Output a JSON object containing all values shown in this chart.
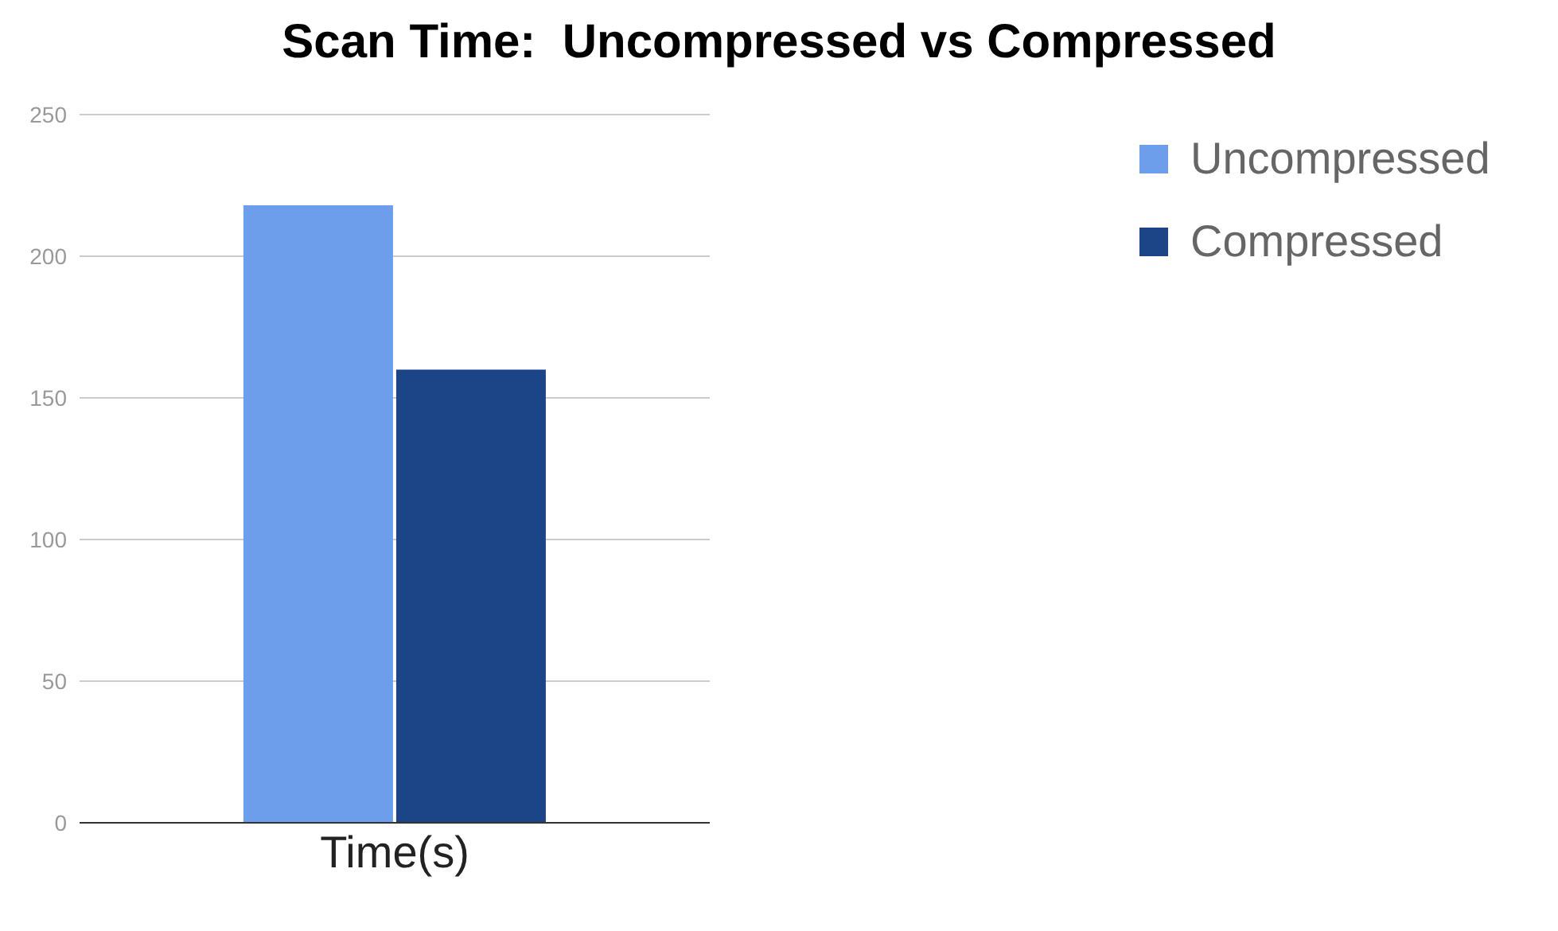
{
  "chart_data": {
    "type": "bar",
    "title": "Scan Time:  Uncompressed vs Compressed",
    "categories": [
      "Time(s)"
    ],
    "series": [
      {
        "name": "Uncompressed",
        "color": "#6d9eeb",
        "values": [
          218
        ]
      },
      {
        "name": "Compressed",
        "color": "#1c4587",
        "values": [
          160
        ]
      }
    ],
    "ylim": [
      0,
      250
    ],
    "yticks": [
      0,
      50,
      100,
      150,
      200,
      250
    ],
    "grid": "y",
    "legend": "top right"
  }
}
